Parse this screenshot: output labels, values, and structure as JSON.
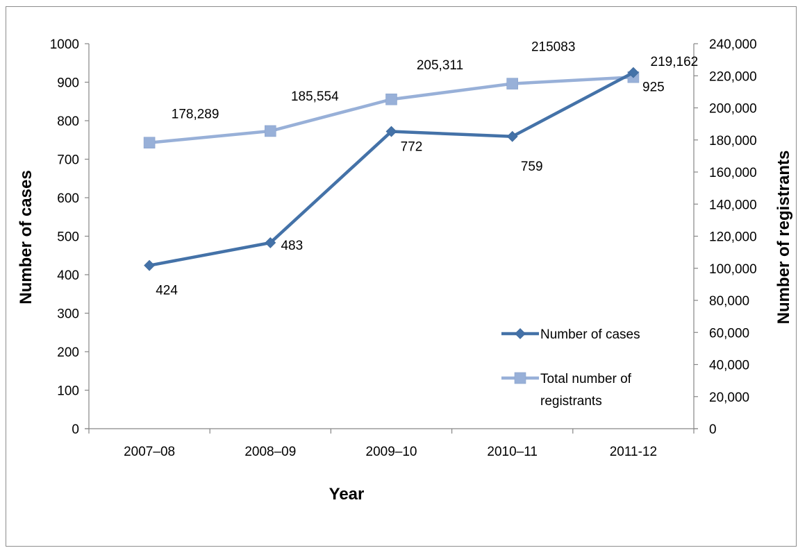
{
  "chart_data": {
    "type": "line",
    "categories": [
      "2007–08",
      "2008–09",
      "2009–10",
      "2010–11",
      "2011-12"
    ],
    "xlabel": "Year",
    "ylabel": "Number of cases",
    "y2label": "Number of registrants",
    "ylim": [
      0,
      1000
    ],
    "y2lim": [
      0,
      240000
    ],
    "yticks": [
      "0",
      "100",
      "200",
      "300",
      "400",
      "500",
      "600",
      "700",
      "800",
      "900",
      "1000"
    ],
    "y2ticks": [
      "0",
      "20,000",
      "40,000",
      "60,000",
      "80,000",
      "100,000",
      "120,000",
      "140,000",
      "160,000",
      "180,000",
      "200,000",
      "220,000",
      "240,000"
    ],
    "grid": false,
    "legend_position": "right",
    "series": [
      {
        "name": "Number of cases",
        "axis": "left",
        "values": [
          424,
          483,
          772,
          759,
          925
        ],
        "labels": [
          "424",
          "483",
          "772",
          "759",
          "925"
        ],
        "color": "#4472a8",
        "marker": "diamond"
      },
      {
        "name": "Total number of registrants",
        "legend_lines": [
          "Total number of",
          "registrants"
        ],
        "axis": "right",
        "values": [
          178289,
          185554,
          205311,
          215083,
          219162
        ],
        "labels": [
          "178,289",
          "185,554",
          "205,311",
          "215083",
          "219,162"
        ],
        "color": "#98b0d8",
        "marker": "square"
      }
    ]
  }
}
